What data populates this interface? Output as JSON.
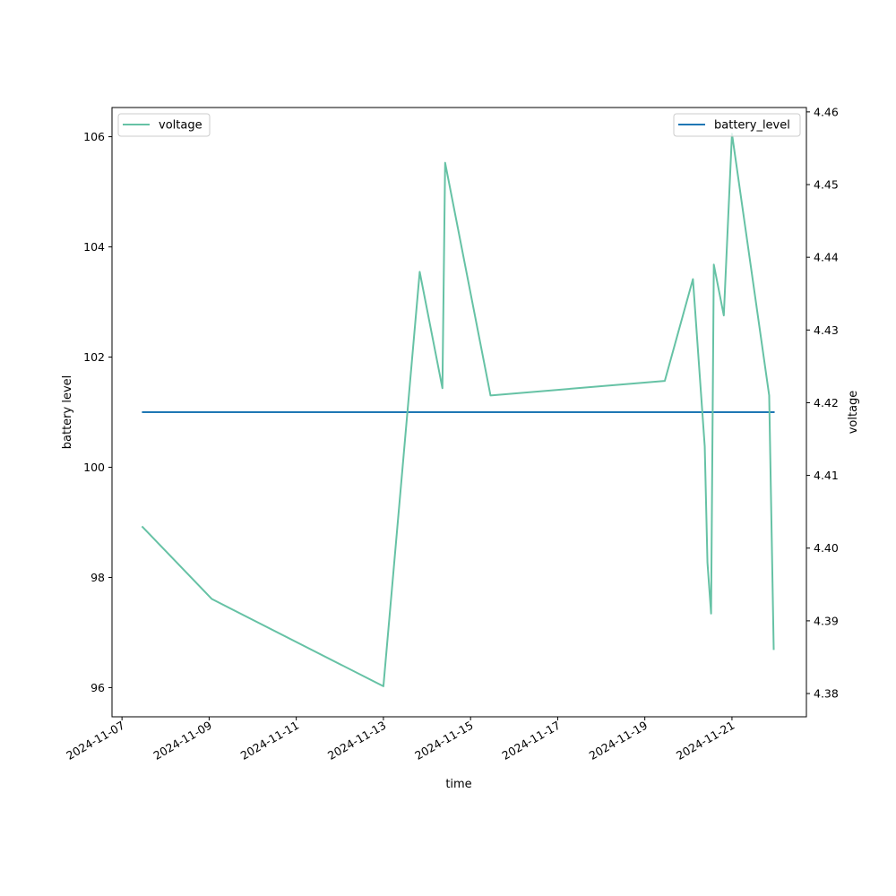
{
  "chart_data": {
    "type": "line",
    "title": "",
    "xlabel": "time",
    "ylabel_left": "battery level",
    "ylabel_right": "voltage",
    "ylim_left": [
      95.47,
      106.53
    ],
    "ylim_right": [
      4.3768,
      4.4606
    ],
    "xlim": [
      "2024-11-06T18:30",
      "2024-11-22T17:00"
    ],
    "x_ticks": [
      "2024-11-07",
      "2024-11-09",
      "2024-11-11",
      "2024-11-13",
      "2024-11-15",
      "2024-11-17",
      "2024-11-19",
      "2024-11-21"
    ],
    "y_ticks_left": [
      96,
      98,
      100,
      102,
      104,
      106
    ],
    "y_ticks_right": [
      "4.38",
      "4.39",
      "4.40",
      "4.41",
      "4.42",
      "4.43",
      "4.44",
      "4.45",
      "4.46"
    ],
    "grid": false,
    "legends": {
      "left": {
        "placement": "upper-left",
        "entries": [
          "voltage"
        ]
      },
      "right": {
        "placement": "upper-right",
        "entries": [
          "battery_level"
        ]
      }
    },
    "series": [
      {
        "name": "battery_level",
        "axis": "left",
        "color": "#1f77b4",
        "points": [
          {
            "x": "2024-11-07T11:00",
            "y": 101
          },
          {
            "x": "2024-11-21T23:30",
            "y": 101
          }
        ]
      },
      {
        "name": "voltage",
        "axis": "right",
        "color": "#66c2a5",
        "points": [
          {
            "x": "2024-11-07T11:00",
            "y": 4.403
          },
          {
            "x": "2024-11-09T01:30",
            "y": 4.393
          },
          {
            "x": "2024-11-13T00:00",
            "y": 4.381
          },
          {
            "x": "2024-11-13T20:00",
            "y": 4.438
          },
          {
            "x": "2024-11-14T08:30",
            "y": 4.422
          },
          {
            "x": "2024-11-14T10:00",
            "y": 4.453
          },
          {
            "x": "2024-11-15T11:00",
            "y": 4.421
          },
          {
            "x": "2024-11-19T11:00",
            "y": 4.423
          },
          {
            "x": "2024-11-20T02:30",
            "y": 4.437
          },
          {
            "x": "2024-11-20T09:00",
            "y": 4.414
          },
          {
            "x": "2024-11-20T10:30",
            "y": 4.398
          },
          {
            "x": "2024-11-20T12:30",
            "y": 4.391
          },
          {
            "x": "2024-11-20T14:00",
            "y": 4.439
          },
          {
            "x": "2024-11-20T19:30",
            "y": 4.432
          },
          {
            "x": "2024-11-21T00:00",
            "y": 4.457
          },
          {
            "x": "2024-11-21T20:30",
            "y": 4.421
          },
          {
            "x": "2024-11-21T23:00",
            "y": 4.386
          }
        ]
      }
    ]
  }
}
